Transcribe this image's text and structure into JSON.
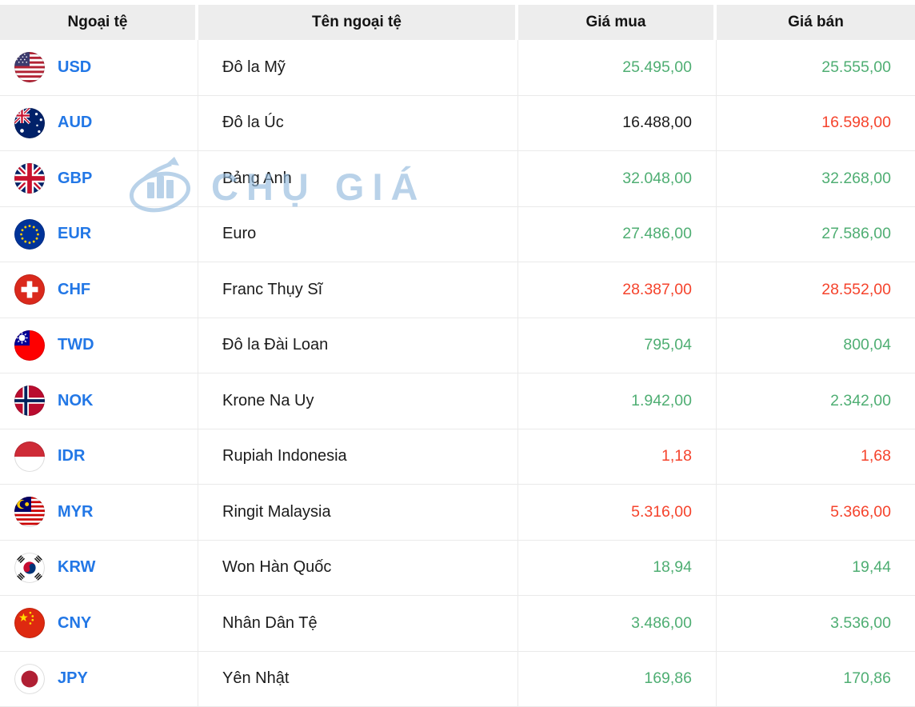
{
  "colors": {
    "green": "#4fae73",
    "red": "#f5432c",
    "dark": "#1b1b1b",
    "blue": "#2277e6"
  },
  "watermark": {
    "text": "CHỤ GIÁ"
  },
  "table": {
    "headers": [
      "Ngoại tệ",
      "Tên ngoại tệ",
      "Giá mua",
      "Giá bán"
    ],
    "rows": [
      {
        "flag": "usd",
        "code": "USD",
        "name": "Đô la Mỹ",
        "buy": "25.495,00",
        "sell": "25.555,00",
        "buy_color": "green",
        "sell_color": "green"
      },
      {
        "flag": "aud",
        "code": "AUD",
        "name": "Đô la Úc",
        "buy": "16.488,00",
        "sell": "16.598,00",
        "buy_color": "dark",
        "sell_color": "red"
      },
      {
        "flag": "gbp",
        "code": "GBP",
        "name": "Bảng Anh",
        "buy": "32.048,00",
        "sell": "32.268,00",
        "buy_color": "green",
        "sell_color": "green"
      },
      {
        "flag": "eur",
        "code": "EUR",
        "name": "Euro",
        "buy": "27.486,00",
        "sell": "27.586,00",
        "buy_color": "green",
        "sell_color": "green"
      },
      {
        "flag": "chf",
        "code": "CHF",
        "name": "Franc Thụy Sĩ",
        "buy": "28.387,00",
        "sell": "28.552,00",
        "buy_color": "red",
        "sell_color": "red"
      },
      {
        "flag": "twd",
        "code": "TWD",
        "name": "Đô la Đài Loan",
        "buy": "795,04",
        "sell": "800,04",
        "buy_color": "green",
        "sell_color": "green"
      },
      {
        "flag": "nok",
        "code": "NOK",
        "name": "Krone Na Uy",
        "buy": "1.942,00",
        "sell": "2.342,00",
        "buy_color": "green",
        "sell_color": "green"
      },
      {
        "flag": "idr",
        "code": "IDR",
        "name": "Rupiah Indonesia",
        "buy": "1,18",
        "sell": "1,68",
        "buy_color": "red",
        "sell_color": "red"
      },
      {
        "flag": "myr",
        "code": "MYR",
        "name": "Ringit Malaysia",
        "buy": "5.316,00",
        "sell": "5.366,00",
        "buy_color": "red",
        "sell_color": "red"
      },
      {
        "flag": "krw",
        "code": "KRW",
        "name": "Won Hàn Quốc",
        "buy": "18,94",
        "sell": "19,44",
        "buy_color": "green",
        "sell_color": "green"
      },
      {
        "flag": "cny",
        "code": "CNY",
        "name": "Nhân Dân Tệ",
        "buy": "3.486,00",
        "sell": "3.536,00",
        "buy_color": "green",
        "sell_color": "green"
      },
      {
        "flag": "jpy",
        "code": "JPY",
        "name": "Yên Nhật",
        "buy": "169,86",
        "sell": "170,86",
        "buy_color": "green",
        "sell_color": "green"
      }
    ]
  }
}
